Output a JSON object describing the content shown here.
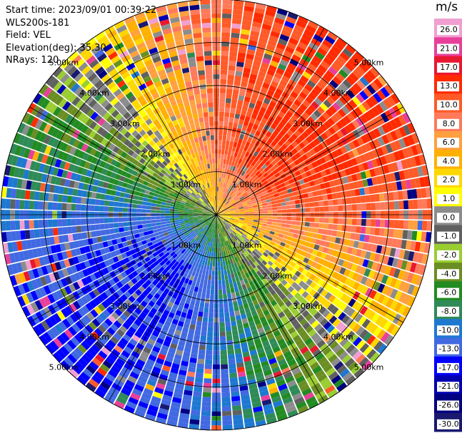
{
  "info": {
    "start_time": "Start time: 2023/09/01 00:39:22",
    "instrument": "WLS200s-181",
    "field": "Field: VEL",
    "elevation": "Elevation(deg): 35.30",
    "nrays": "NRays: 120"
  },
  "colorbar": {
    "unit": "m/s",
    "ticks": [
      "26.0",
      "21.0",
      "17.0",
      "13.0",
      "10.0",
      "8.0",
      "6.0",
      "4.0",
      "2.0",
      "1.0",
      "0.0",
      "-1.0",
      "-2.0",
      "-4.0",
      "-6.0",
      "-8.0",
      "-10.0",
      "-13.0",
      "-17.0",
      "-21.0",
      "-26.0",
      "-30.0"
    ],
    "colors": [
      "#f0a0d0",
      "#e8409a",
      "#e81830",
      "#ff2a00",
      "#ff5a28",
      "#ff7a5a",
      "#ffa040",
      "#ffb000",
      "#ffd700",
      "#ffff00",
      "#8c8c8c",
      "#606060",
      "#9acd32",
      "#6b8e23",
      "#228b22",
      "#2e8b57",
      "#1e78d0",
      "#4169e1",
      "#0000ff",
      "#0000b0",
      "#000080",
      "#191970"
    ]
  },
  "chart_data": {
    "type": "heatmap",
    "projection": "polar-ppi",
    "n_rays": 120,
    "range_rings_km": [
      1,
      2,
      3,
      4,
      5
    ],
    "ring_labels": [
      "1.00km",
      "2.00km",
      "3.00km",
      "4.00km",
      "5.00km"
    ],
    "max_range_km": 5.0,
    "velocity_range": [
      -30,
      30
    ],
    "azimuth_lines_deg": [
      0,
      30,
      60,
      90,
      120,
      150,
      180,
      210,
      240,
      270,
      300,
      330
    ]
  }
}
